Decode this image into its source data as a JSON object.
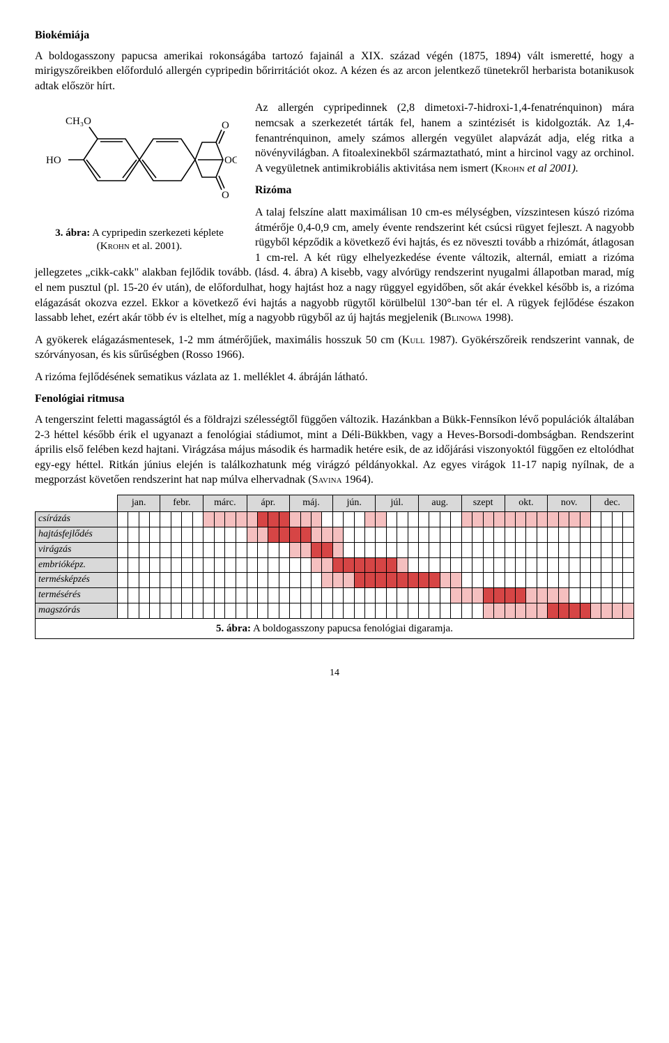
{
  "headings": {
    "biochem": "Biokémiája",
    "rizoma": "Rizóma",
    "fenol": "Fenológiai ritmusa"
  },
  "paragraphs": {
    "p1": "A boldogasszony papucsa amerikai rokonságába tartozó fajainál a XIX. század végén (1875, 1894) vált ismeretté, hogy a mirigyszőreikben előforduló allergén cypripedin bőrirritációt okoz. A kézen és az arcon jelentkező tünetekről herbarista botanikusok adtak először hírt.",
    "p2a": "Az allergén cypripedinnek (2,8 dimetoxi-7-hidroxi-1,4-fenatrénquinon) mára nemcsak a szerkezetét tárták fel, hanem a szintézisét is kidolgozták. Az 1,4-fenantrénquinon, amely számos allergén vegyület alapvázát adja, elég ritka a növényvilágban. A fitoalexinekből származtatható, mint a hircinol vagy az orchinol. A vegyületnek antimikrobiális aktivitása nem ismert (",
    "p2b": "Krohn",
    "p2c": " et al 2001).",
    "p3a": "A talaj felszíne alatt maximálisan 10 cm-es mélységben, vízszintesen kúszó rizóma átmérője 0,4-0,9 cm, amely évente rendszerint két csúcsi rügyet fejleszt. A nagyobb rügyből képződik a következő évi hajtás, és ez növeszti tovább a rhizómát, átlagosan 1 cm-rel. A két rügy elhelyezkedése évente változik, alternál, emiatt a rizóma jellegzetes „cikk-cakk\" alakban fejlődik tovább. (lásd. 4. ábra) A kisebb, vagy alvórügy rendszerint nyugalmi állapotban marad, míg el nem pusztul (pl. 15-20 év után), de előfordulhat, hogy hajtást hoz a nagy rüggyel egyidőben, sőt akár évekkel később is, a rizóma elágazását okozva ezzel. Ekkor a következő évi hajtás a nagyobb rügytől körülbelül 130°-ban tér el. A rügyek fejlődése északon lassabb lehet, ezért akár több év is eltelhet, míg a nagyobb rügyből az új hajtás megjelenik (",
    "p3b": "Blinowa",
    "p3c": " 1998).",
    "p4a": "A gyökerek elágazásmentesek, 1-2 mm átmérőjűek, maximális hosszuk 50 cm (",
    "p4b": "Kull",
    "p4c": " 1987). Gyökérszőreik rendszerint vannak, de szórványosan, és kis sűrűségben (Rosso 1966).",
    "p5": "A rizóma fejlődésének sematikus vázlata az 1. melléklet 4. ábráján látható.",
    "p6a": "A tengerszint feletti magasságtól és a földrajzi szélességtől függően változik. Hazánkban a Bükk-Fennsíkon lévő populációk általában 2-3 héttel később érik el ugyanazt a fenológiai stádiumot, mint a Déli-Bükkben, vagy a Heves-Borsodi-dombságban. Rendszerint április első felében kezd hajtani. Virágzása május második és harmadik hetére esik, de az időjárási viszonyoktól függően ez eltolódhat egy-egy héttel. Ritkán június elején is találkozhatunk még virágzó példányokkal. Az egyes virágok 11-17 napig nyílnak, de a megporzást követően rendszerint hat nap múlva elhervadnak (",
    "p6b": "Savina",
    "p6c": " 1964)."
  },
  "figure3": {
    "labels": {
      "ch3o": "CH₃O",
      "ho": "HO",
      "o1": "O",
      "o2": "O",
      "och3": "OCH₃"
    },
    "caption_bold": "3. ábra:",
    "caption_a": " A cypripedin szerkezeti képlete",
    "caption_b": "(",
    "caption_sc": "Krohn",
    "caption_c": " et al. 2001)."
  },
  "phenology": {
    "months": [
      "jan.",
      "febr.",
      "márc.",
      "ápr.",
      "máj.",
      "jún.",
      "júl.",
      "aug.",
      "szept",
      "okt.",
      "nov.",
      "dec."
    ],
    "rows": [
      {
        "label": "csírázás",
        "ital": true,
        "cells": "........llllldddlll....ll.......llllllllllll...."
      },
      {
        "label": "hajtásfejlődés",
        "ital": true,
        "cells": "............llddddlll..........................."
      },
      {
        "label": "virágzás",
        "ital": true,
        "cells": "................llddl..........................."
      },
      {
        "label": "embrióképz.",
        "ital": true,
        "cells": "..................llddddddl....................."
      },
      {
        "label": "termésképzés",
        "ital": true,
        "cells": "...................lllddddddddll................"
      },
      {
        "label": "termésérés",
        "ital": true,
        "cells": "...............................lllddddllll......"
      },
      {
        "label": "magszórás",
        "ital": true,
        "cells": "..................................llllllddddllll"
      }
    ],
    "colors": {
      "light": "#f5bfbf",
      "dark": "#d64545",
      "header_bg": "#d9d9d9"
    }
  },
  "figure5": {
    "caption_bold": "5. ábra:",
    "caption_rest": " A boldogasszony papucsa fenológiai digaramja."
  },
  "page_number": "14"
}
